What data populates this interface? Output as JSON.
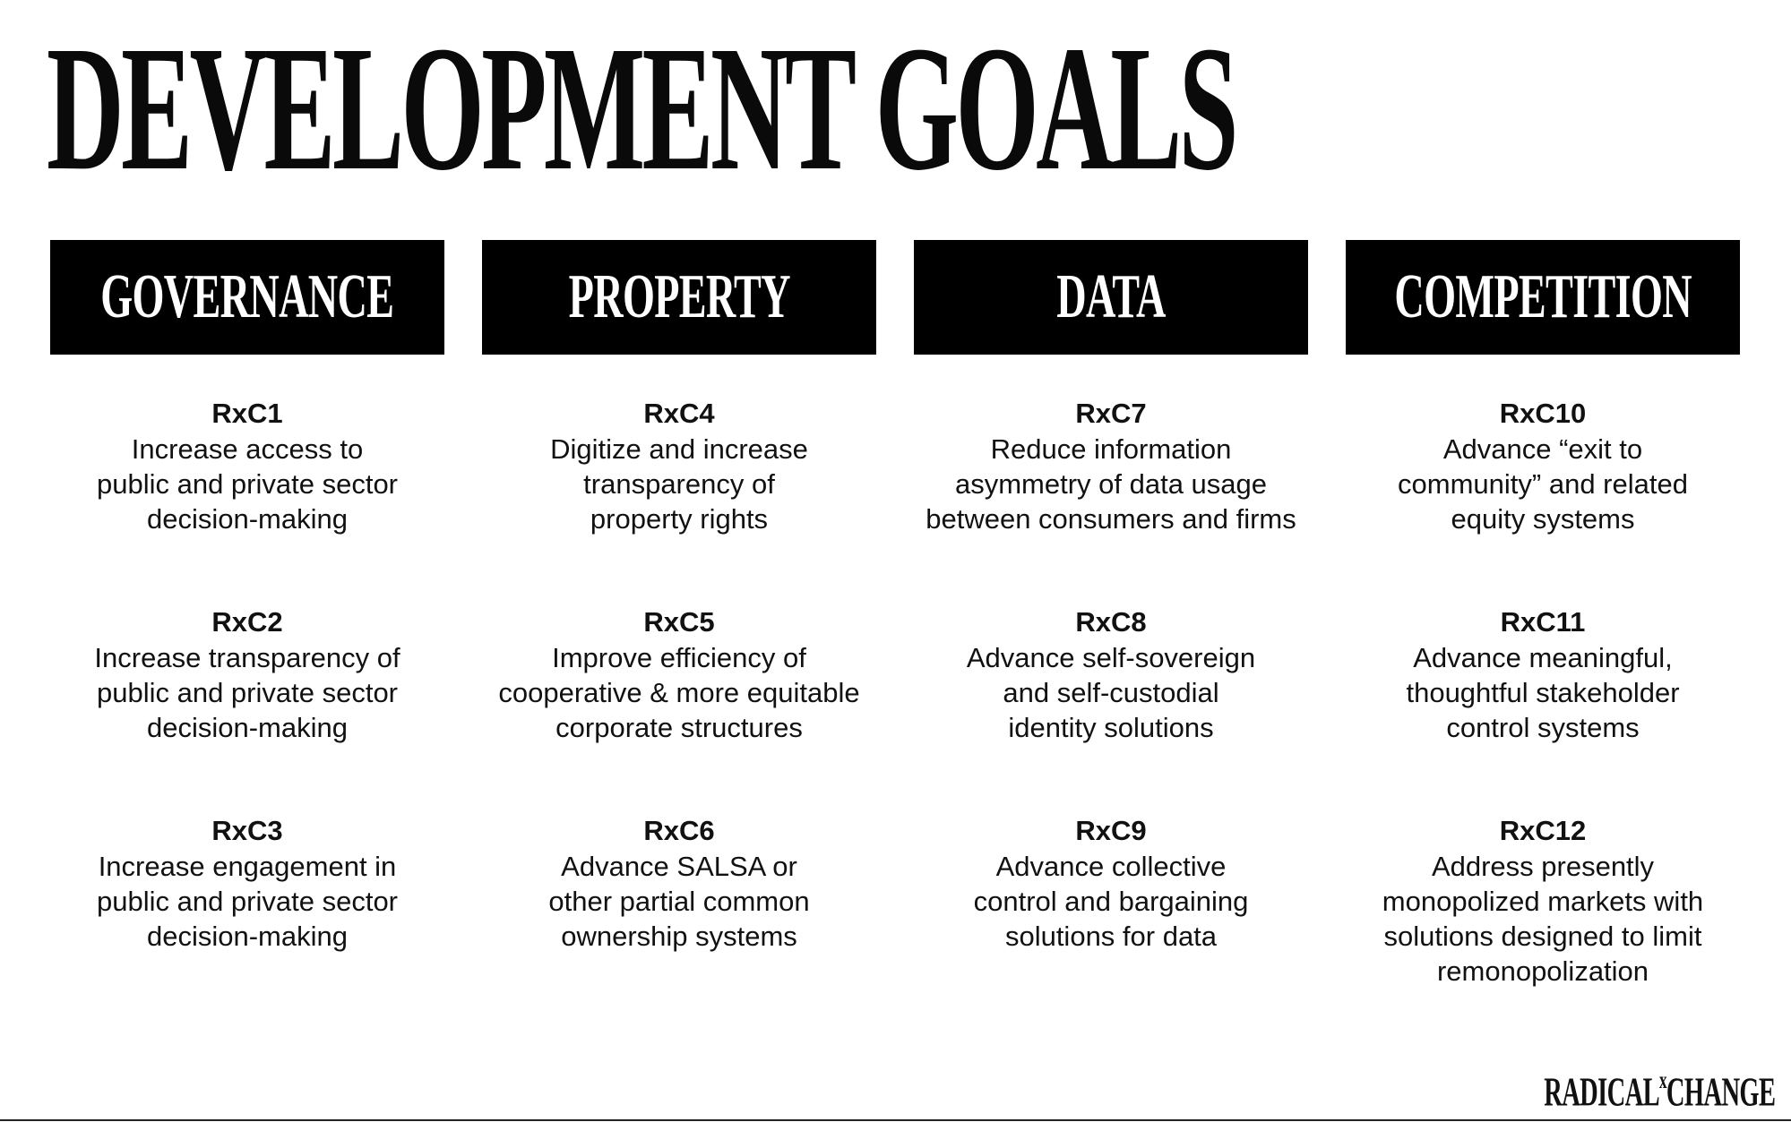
{
  "title": "DEVELOPMENT GOALS",
  "columns": [
    {
      "header": "GOVERNANCE",
      "goals": [
        {
          "code": "RxC1",
          "text": "Increase access to\npublic and private sector\ndecision-making"
        },
        {
          "code": "RxC2",
          "text": "Increase transparency of\npublic and private sector\ndecision-making"
        },
        {
          "code": "RxC3",
          "text": "Increase engagement in\npublic and private sector\ndecision-making"
        }
      ]
    },
    {
      "header": "PROPERTY",
      "goals": [
        {
          "code": "RxC4",
          "text": "Digitize and increase\ntransparency of\nproperty rights"
        },
        {
          "code": "RxC5",
          "text": "Improve efficiency of\ncooperative & more equitable\ncorporate structures"
        },
        {
          "code": "RxC6",
          "text": "Advance SALSA or\nother partial common\nownership systems"
        }
      ]
    },
    {
      "header": "DATA",
      "goals": [
        {
          "code": "RxC7",
          "text": "Reduce information\nasymmetry of data usage\nbetween consumers and firms"
        },
        {
          "code": "RxC8",
          "text": "Advance self-sovereign\nand self-custodial\nidentity solutions"
        },
        {
          "code": "RxC9",
          "text": "Advance collective\ncontrol and bargaining\nsolutions for data"
        }
      ]
    },
    {
      "header": "COMPETITION",
      "goals": [
        {
          "code": "RxC10",
          "text": "Advance “exit to\ncommunity” and related\nequity systems"
        },
        {
          "code": "RxC11",
          "text": "Advance meaningful,\nthoughtful stakeholder\ncontrol systems"
        },
        {
          "code": "RxC12",
          "text": "Address presently\nmonopolized markets with\nsolutions designed to limit\nremonopolization"
        }
      ]
    }
  ],
  "logo": {
    "left": "RADICAL",
    "superscript": "x",
    "right": "CHANGE"
  }
}
